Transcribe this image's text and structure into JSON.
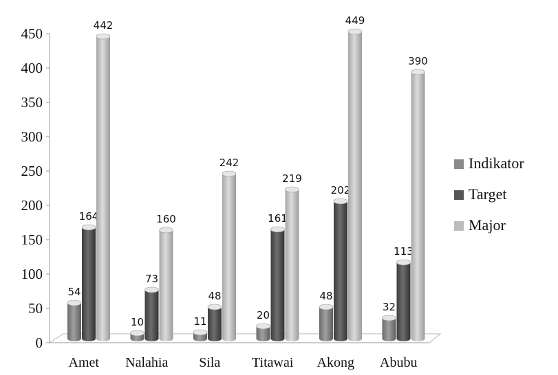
{
  "chart_data": {
    "type": "bar",
    "title": "",
    "xlabel": "",
    "ylabel": "",
    "categories": [
      "Amet",
      "Nalahia",
      "Sila",
      "Titawai",
      "Akong",
      "Abubu"
    ],
    "series": [
      {
        "name": "Indikator",
        "values": [
          54,
          10,
          11,
          20,
          48,
          32
        ]
      },
      {
        "name": "Target",
        "values": [
          164,
          73,
          48,
          161,
          202,
          113
        ]
      },
      {
        "name": "Major",
        "values": [
          442,
          160,
          242,
          219,
          449,
          390
        ]
      }
    ],
    "ylim": [
      0,
      450
    ],
    "yticks": [
      "0",
      "50",
      "100",
      "150",
      "200",
      "250",
      "300",
      "350",
      "400",
      "450"
    ],
    "legend_position": "right",
    "grid": false,
    "style": "3d-cylinder",
    "colors": {
      "Indikator": "#8a8a8a",
      "Target": "#555555",
      "Major": "#bdbdbd"
    }
  }
}
